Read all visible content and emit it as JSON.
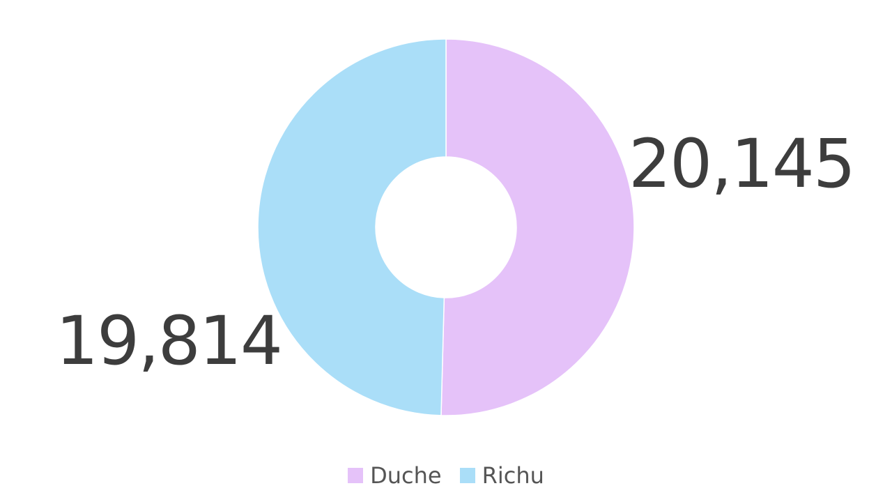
{
  "chart_data": {
    "type": "pie",
    "variant": "donut",
    "title": "",
    "categories": [
      "Duche",
      "Richu"
    ],
    "values": [
      20145,
      19814
    ],
    "value_labels": [
      "20,145",
      "19,814"
    ],
    "colors": [
      "#e5c2f9",
      "#aadef8"
    ],
    "legend": {
      "placement": "bottom-center",
      "entries": [
        "Duche",
        "Richu"
      ]
    },
    "start_angle": "12 o'clock",
    "direction": "clockwise"
  }
}
